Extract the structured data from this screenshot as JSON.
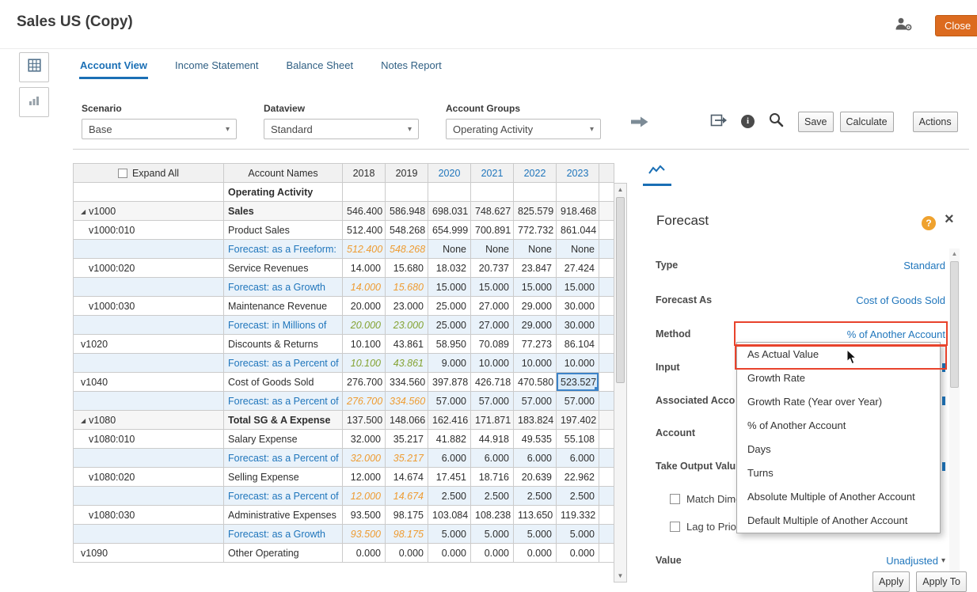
{
  "header": {
    "title": "Sales US (Copy)",
    "close_label": "Close"
  },
  "tabs": [
    {
      "label": "Account View",
      "active": true
    },
    {
      "label": "Income Statement",
      "active": false
    },
    {
      "label": "Balance Sheet",
      "active": false
    },
    {
      "label": "Notes Report",
      "active": false
    }
  ],
  "filters": [
    {
      "label": "Scenario",
      "value": "Base"
    },
    {
      "label": "Dataview",
      "value": "Standard"
    },
    {
      "label": "Account Groups",
      "value": "Operating Activity"
    }
  ],
  "toolbar": {
    "buttons": [
      "Save",
      "Calculate",
      "Actions"
    ]
  },
  "grid": {
    "expand_all_label": "Expand All",
    "account_names_header": "Account Names",
    "year_columns": [
      {
        "label": "2018",
        "forecast": false
      },
      {
        "label": "2019",
        "forecast": false
      },
      {
        "label": "2020",
        "forecast": true
      },
      {
        "label": "2021",
        "forecast": true
      },
      {
        "label": "2022",
        "forecast": true
      },
      {
        "label": "2023",
        "forecast": true
      }
    ],
    "rows": [
      {
        "code": "",
        "name": "Operating Activity",
        "name_bold": true,
        "kind": "section",
        "values": [
          "",
          "",
          "",
          "",
          "",
          ""
        ]
      },
      {
        "code": "v1000",
        "parent": true,
        "name": "Sales",
        "name_bold": true,
        "kind": "parent",
        "values": [
          "546.400",
          "586.948",
          "698.031",
          "748.627",
          "825.579",
          "918.468"
        ]
      },
      {
        "code": "v1000:010",
        "child": true,
        "name": "Product Sales",
        "kind": "account",
        "values": [
          "512.400",
          "548.268",
          "654.999",
          "700.891",
          "772.732",
          "861.044"
        ]
      },
      {
        "kind": "forecast",
        "name": "Forecast: as a Freeform:",
        "hist": "orange",
        "values": [
          "512.400",
          "548.268",
          "None",
          "None",
          "None",
          "None"
        ]
      },
      {
        "code": "v1000:020",
        "child": true,
        "name": "Service Revenues",
        "kind": "account",
        "values": [
          "14.000",
          "15.680",
          "18.032",
          "20.737",
          "23.847",
          "27.424"
        ]
      },
      {
        "kind": "forecast",
        "name": "Forecast: as a Growth",
        "hist": "orange",
        "values": [
          "14.000",
          "15.680",
          "15.000",
          "15.000",
          "15.000",
          "15.000"
        ]
      },
      {
        "code": "v1000:030",
        "child": true,
        "name": "Maintenance Revenue",
        "kind": "account",
        "values": [
          "20.000",
          "23.000",
          "25.000",
          "27.000",
          "29.000",
          "30.000"
        ]
      },
      {
        "kind": "forecast",
        "name": "Forecast: in Millions of",
        "hist": "green",
        "values": [
          "20.000",
          "23.000",
          "25.000",
          "27.000",
          "29.000",
          "30.000"
        ]
      },
      {
        "code": "v1020",
        "name": "Discounts & Returns",
        "kind": "account",
        "values": [
          "10.100",
          "43.861",
          "58.950",
          "70.089",
          "77.273",
          "86.104"
        ]
      },
      {
        "kind": "forecast",
        "name": "Forecast: as a Percent of",
        "hist": "green",
        "values": [
          "10.100",
          "43.861",
          "9.000",
          "10.000",
          "10.000",
          "10.000"
        ]
      },
      {
        "code": "v1040",
        "name": "Cost of Goods Sold",
        "kind": "account",
        "values": [
          "276.700",
          "334.560",
          "397.878",
          "426.718",
          "470.580",
          "523.527"
        ],
        "selected_col": 5
      },
      {
        "kind": "forecast",
        "name": "Forecast: as a Percent of",
        "hist": "orange",
        "values": [
          "276.700",
          "334.560",
          "57.000",
          "57.000",
          "57.000",
          "57.000"
        ]
      },
      {
        "code": "v1080",
        "parent": true,
        "name": "Total SG & A Expense",
        "name_bold": true,
        "kind": "parent",
        "values": [
          "137.500",
          "148.066",
          "162.416",
          "171.871",
          "183.824",
          "197.402"
        ]
      },
      {
        "code": "v1080:010",
        "child": true,
        "name": "Salary Expense",
        "kind": "account",
        "values": [
          "32.000",
          "35.217",
          "41.882",
          "44.918",
          "49.535",
          "55.108"
        ]
      },
      {
        "kind": "forecast",
        "name": "Forecast: as a Percent of",
        "hist": "orange",
        "values": [
          "32.000",
          "35.217",
          "6.000",
          "6.000",
          "6.000",
          "6.000"
        ]
      },
      {
        "code": "v1080:020",
        "child": true,
        "name": "Selling Expense",
        "kind": "account",
        "values": [
          "12.000",
          "14.674",
          "17.451",
          "18.716",
          "20.639",
          "22.962"
        ]
      },
      {
        "kind": "forecast",
        "name": "Forecast: as a Percent of",
        "hist": "orange",
        "values": [
          "12.000",
          "14.674",
          "2.500",
          "2.500",
          "2.500",
          "2.500"
        ]
      },
      {
        "code": "v1080:030",
        "child": true,
        "name": "Administrative Expenses",
        "kind": "account",
        "values": [
          "93.500",
          "98.175",
          "103.084",
          "108.238",
          "113.650",
          "119.332"
        ]
      },
      {
        "kind": "forecast",
        "name": "Forecast: as a Growth",
        "hist": "orange",
        "values": [
          "93.500",
          "98.175",
          "5.000",
          "5.000",
          "5.000",
          "5.000"
        ]
      },
      {
        "code": "v1090",
        "name": "Other Operating",
        "kind": "account",
        "values": [
          "0.000",
          "0.000",
          "0.000",
          "0.000",
          "0.000",
          "0.000"
        ]
      }
    ]
  },
  "panel": {
    "title": "Forecast",
    "fields": [
      {
        "label": "Type",
        "value": "Standard"
      },
      {
        "label": "Forecast As",
        "value": "Cost of Goods Sold"
      },
      {
        "label": "Method",
        "value": "% of Another Account",
        "highlighted": true
      },
      {
        "label": "Input",
        "value": ""
      },
      {
        "label": "Associated Acco",
        "value": ""
      },
      {
        "label": "Account",
        "value": ""
      },
      {
        "label": "Take Output Valu",
        "value": ""
      },
      {
        "label": "Match Dimen",
        "checkbox": true
      },
      {
        "label": "Lag to Prior",
        "checkbox": true
      },
      {
        "label": "Value",
        "value": "Unadjusted",
        "caret": true
      }
    ],
    "buttons": [
      "Apply",
      "Apply To"
    ]
  },
  "method_dropdown": {
    "items": [
      "As Actual Value",
      "Growth Rate",
      "Growth Rate (Year over Year)",
      "% of Another Account",
      "Days",
      "Turns",
      "Absolute Multiple of Another Account",
      "Default Multiple of Another Account"
    ]
  },
  "icons": {
    "chevron_down": "▾",
    "caret_down": "▾",
    "collapse_triangle": "◢",
    "scroll_up": "▲",
    "scroll_down": "▼",
    "help": "?",
    "close_panel": "×",
    "info": "i"
  },
  "colors": {
    "accent": "#1A6FB5",
    "link": "#2076BC",
    "close": "#DC6B1F",
    "red": "#E8432C",
    "hist_orange": "#EE9C32",
    "hist_green": "#84A333",
    "sel": "#3C83C8",
    "forecast_bg": "#E9F2FA",
    "tab_inactive": "#2F5F83"
  }
}
